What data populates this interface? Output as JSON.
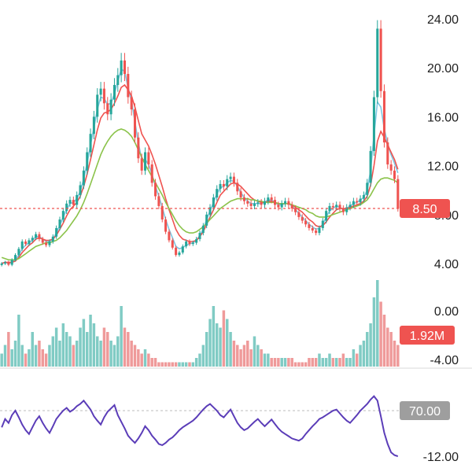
{
  "chart_data": [
    {
      "type": "candlestick",
      "panel": "price",
      "ylim": [
        3.0,
        25.0
      ],
      "y_ticks": [
        "24.00",
        "20.00",
        "16.00",
        "12.00",
        "8.00",
        "4.00"
      ],
      "current_price_label": "8.50",
      "current_price": 8.5,
      "grid": "off",
      "colors": {
        "up": "#26a69a",
        "down": "#ef5350",
        "price_line": "#ef5350"
      },
      "close": [
        4.0,
        4.1,
        3.9,
        4.3,
        4.7,
        5.2,
        5.8,
        5.6,
        5.9,
        6.1,
        6.4,
        6.0,
        5.7,
        5.5,
        5.8,
        6.2,
        6.9,
        7.6,
        8.3,
        8.9,
        9.2,
        8.8,
        9.6,
        10.4,
        11.6,
        13.1,
        14.6,
        16.0,
        17.8,
        18.3,
        17.1,
        16.2,
        17.4,
        18.6,
        19.4,
        20.6,
        19.5,
        17.6,
        16.6,
        14.3,
        12.6,
        11.6,
        13.1,
        12.1,
        10.6,
        9.5,
        8.7,
        7.6,
        6.6,
        5.9,
        5.3,
        4.7,
        4.9,
        5.4,
        5.8,
        5.6,
        5.7,
        6.0,
        6.5,
        7.1,
        8.0,
        8.6,
        9.4,
        10.1,
        10.5,
        10.3,
        10.9,
        11.1,
        10.6,
        9.9,
        9.4,
        9.1,
        8.9,
        8.7,
        8.9,
        9.0,
        8.8,
        9.1,
        9.4,
        9.2,
        8.8,
        8.6,
        8.9,
        9.1,
        8.8,
        8.5,
        8.2,
        7.8,
        7.5,
        7.2,
        6.9,
        6.7,
        6.5,
        6.9,
        7.5,
        8.3,
        8.7,
        8.6,
        8.8,
        8.5,
        8.2,
        8.6,
        8.8,
        9.1,
        9.0,
        9.3,
        9.6,
        10.6,
        13.2,
        17.6,
        23.2,
        18.1,
        13.9,
        12.1,
        11.6,
        10.9,
        8.5
      ],
      "moving_averages": [
        {
          "color": "#7ec8e3",
          "values": [
            4.0,
            4.1,
            4.0,
            4.1,
            4.3,
            4.7,
            5.2,
            5.5,
            5.7,
            5.9,
            6.2,
            6.2,
            6.0,
            5.8,
            5.8,
            6.0,
            6.5,
            7.1,
            7.8,
            8.4,
            8.9,
            9.0,
            9.3,
            9.9,
            10.9,
            12.2,
            13.7,
            15.1,
            16.6,
            17.6,
            17.5,
            17.0,
            17.1,
            17.9,
            18.9,
            19.9,
            19.7,
            18.4,
            17.3,
            15.6,
            13.9,
            12.5,
            12.5,
            12.1,
            11.3,
            10.3,
            9.5,
            8.6,
            7.6,
            6.8,
            6.1,
            5.4,
            5.2,
            5.3,
            5.5,
            5.6,
            5.7,
            5.9,
            6.3,
            6.8,
            7.6,
            8.3,
            9.0,
            9.7,
            10.2,
            10.3,
            10.6,
            10.8,
            10.7,
            10.3,
            9.8,
            9.4,
            9.1,
            8.9,
            8.9,
            8.9,
            8.9,
            9.0,
            9.2,
            9.2,
            9.0,
            8.8,
            8.8,
            8.9,
            8.9,
            8.7,
            8.4,
            8.1,
            7.8,
            7.5,
            7.2,
            7.0,
            6.8,
            6.9,
            7.2,
            7.8,
            8.3,
            8.5,
            8.7,
            8.6,
            8.4,
            8.5,
            8.7,
            8.9,
            9.0,
            9.2,
            9.4,
            10.0,
            11.6,
            14.5,
            17.2,
            16.8,
            15.0,
            13.8,
            12.9,
            12.2,
            11.4
          ]
        },
        {
          "color": "#ef5350",
          "values": [
            4.0,
            4.1,
            4.1,
            4.1,
            4.2,
            4.5,
            4.9,
            5.2,
            5.5,
            5.7,
            6.0,
            6.1,
            6.0,
            5.9,
            5.9,
            6.0,
            6.3,
            6.8,
            7.3,
            7.9,
            8.4,
            8.7,
            9.0,
            9.5,
            10.3,
            11.3,
            12.5,
            13.7,
            14.9,
            15.9,
            16.3,
            16.4,
            16.6,
            17.1,
            17.7,
            18.4,
            18.6,
            18.2,
            17.7,
            16.8,
            15.7,
            14.6,
            14.1,
            13.6,
            12.9,
            12.1,
            11.2,
            10.3,
            9.3,
            8.4,
            7.6,
            6.8,
            6.3,
            6.0,
            5.9,
            5.8,
            5.8,
            5.9,
            6.2,
            6.6,
            7.2,
            7.8,
            8.4,
            9.0,
            9.6,
            9.9,
            10.2,
            10.5,
            10.6,
            10.5,
            10.3,
            10.0,
            9.7,
            9.4,
            9.2,
            9.1,
            9.0,
            9.0,
            9.1,
            9.1,
            9.0,
            8.9,
            8.9,
            8.9,
            8.9,
            8.8,
            8.6,
            8.4,
            8.2,
            7.9,
            7.6,
            7.4,
            7.1,
            7.0,
            7.1,
            7.4,
            7.8,
            8.1,
            8.4,
            8.5,
            8.5,
            8.5,
            8.6,
            8.7,
            8.8,
            8.9,
            9.1,
            9.5,
            10.4,
            12.0,
            14.0,
            14.8,
            14.3,
            13.7,
            13.1,
            12.5,
            11.7
          ]
        },
        {
          "color": "#8bc34a",
          "values": [
            4.5,
            4.4,
            4.3,
            4.3,
            4.3,
            4.4,
            4.6,
            4.8,
            5.0,
            5.2,
            5.4,
            5.5,
            5.6,
            5.7,
            5.7,
            5.8,
            5.9,
            6.1,
            6.4,
            6.7,
            7.1,
            7.5,
            7.9,
            8.4,
            9.0,
            9.7,
            10.5,
            11.3,
            12.1,
            12.9,
            13.5,
            14.0,
            14.4,
            14.7,
            14.9,
            15.0,
            14.9,
            14.7,
            14.4,
            13.9,
            13.3,
            12.7,
            12.1,
            11.6,
            11.1,
            10.6,
            10.1,
            9.6,
            9.0,
            8.5,
            8.0,
            7.5,
            7.1,
            6.8,
            6.6,
            6.5,
            6.5,
            6.6,
            6.8,
            7.0,
            7.3,
            7.6,
            7.9,
            8.2,
            8.5,
            8.7,
            8.9,
            9.1,
            9.2,
            9.3,
            9.3,
            9.3,
            9.3,
            9.2,
            9.2,
            9.1,
            9.1,
            9.0,
            9.0,
            9.0,
            9.0,
            8.9,
            8.9,
            8.9,
            8.9,
            8.8,
            8.7,
            8.6,
            8.5,
            8.4,
            8.2,
            8.1,
            7.9,
            7.8,
            7.8,
            7.8,
            7.9,
            8.0,
            8.1,
            8.2,
            8.3,
            8.4,
            8.5,
            8.6,
            8.7,
            8.8,
            9.0,
            9.2,
            9.6,
            10.1,
            10.6,
            10.9,
            11.0,
            11.0,
            10.9,
            10.8,
            10.6
          ]
        }
      ]
    },
    {
      "type": "bar",
      "panel": "volume",
      "y_ticks": [
        "0.00",
        "-4.00"
      ],
      "current_volume_label": "1.92M",
      "colors": {
        "up": "#80cbc4",
        "down": "#ef9a9a"
      },
      "values": [
        0.3,
        0.5,
        0.8,
        0.4,
        0.6,
        1.2,
        0.5,
        0.3,
        0.4,
        0.8,
        0.5,
        0.6,
        0.4,
        0.3,
        0.5,
        0.7,
        0.9,
        0.6,
        1.0,
        0.8,
        0.7,
        0.5,
        0.6,
        0.9,
        1.1,
        0.8,
        1.2,
        1.0,
        0.7,
        0.6,
        0.9,
        0.8,
        0.6,
        0.5,
        0.7,
        1.4,
        0.9,
        0.8,
        0.6,
        0.5,
        0.4,
        0.3,
        0.4,
        0.3,
        0.2,
        0.2,
        0.1,
        0.1,
        0.1,
        0.1,
        0.1,
        0.1,
        0.1,
        0.1,
        0.1,
        0.1,
        0.1,
        0.2,
        0.3,
        0.5,
        0.8,
        1.1,
        1.4,
        1.0,
        0.9,
        1.3,
        1.1,
        0.8,
        0.6,
        0.5,
        0.4,
        0.5,
        0.6,
        0.4,
        0.7,
        0.5,
        0.4,
        0.3,
        0.3,
        0.2,
        0.2,
        0.2,
        0.2,
        0.2,
        0.2,
        0.2,
        0.1,
        0.1,
        0.1,
        0.1,
        0.2,
        0.2,
        0.2,
        0.3,
        0.2,
        0.2,
        0.3,
        0.2,
        0.2,
        0.2,
        0.3,
        0.2,
        0.2,
        0.4,
        0.3,
        0.5,
        0.6,
        0.8,
        1.0,
        1.6,
        2.0,
        1.5,
        1.2,
        0.9,
        0.8,
        0.6,
        0.5
      ],
      "up_flags": [
        1,
        1,
        0,
        1,
        1,
        1,
        1,
        0,
        1,
        1,
        1,
        0,
        0,
        0,
        1,
        1,
        1,
        1,
        1,
        1,
        1,
        0,
        1,
        1,
        1,
        1,
        1,
        1,
        1,
        1,
        0,
        0,
        1,
        1,
        1,
        1,
        0,
        0,
        0,
        0,
        0,
        0,
        1,
        0,
        0,
        0,
        0,
        0,
        0,
        0,
        0,
        0,
        1,
        1,
        1,
        0,
        1,
        1,
        1,
        1,
        1,
        1,
        1,
        1,
        1,
        0,
        1,
        1,
        0,
        0,
        0,
        0,
        0,
        0,
        1,
        1,
        0,
        1,
        1,
        0,
        0,
        0,
        1,
        1,
        0,
        0,
        0,
        0,
        0,
        0,
        0,
        0,
        0,
        1,
        1,
        1,
        1,
        0,
        1,
        0,
        0,
        1,
        1,
        1,
        0,
        1,
        1,
        1,
        1,
        1,
        1,
        0,
        0,
        0,
        0,
        0,
        0
      ]
    },
    {
      "type": "line",
      "panel": "oscillator",
      "y_ticks": [
        "70.00",
        "-12.00"
      ],
      "level_line": 70.0,
      "color": "#5b3db8",
      "values": [
        40,
        55,
        48,
        62,
        70,
        58,
        45,
        35,
        28,
        40,
        52,
        60,
        48,
        38,
        30,
        42,
        55,
        63,
        70,
        75,
        68,
        72,
        78,
        82,
        88,
        80,
        72,
        60,
        52,
        45,
        58,
        68,
        74,
        80,
        62,
        50,
        38,
        25,
        18,
        12,
        20,
        30,
        42,
        35,
        25,
        18,
        10,
        8,
        12,
        18,
        22,
        28,
        35,
        40,
        44,
        48,
        52,
        58,
        65,
        72,
        78,
        82,
        76,
        70,
        62,
        58,
        65,
        72,
        60,
        48,
        40,
        35,
        38,
        44,
        50,
        55,
        48,
        42,
        48,
        54,
        46,
        38,
        32,
        28,
        24,
        20,
        18,
        16,
        20,
        28,
        35,
        42,
        48,
        55,
        58,
        62,
        66,
        70,
        72,
        65,
        58,
        52,
        48,
        55,
        62,
        70,
        76,
        82,
        90,
        96,
        88,
        60,
        30,
        10,
        -5,
        -10,
        -12
      ]
    }
  ]
}
